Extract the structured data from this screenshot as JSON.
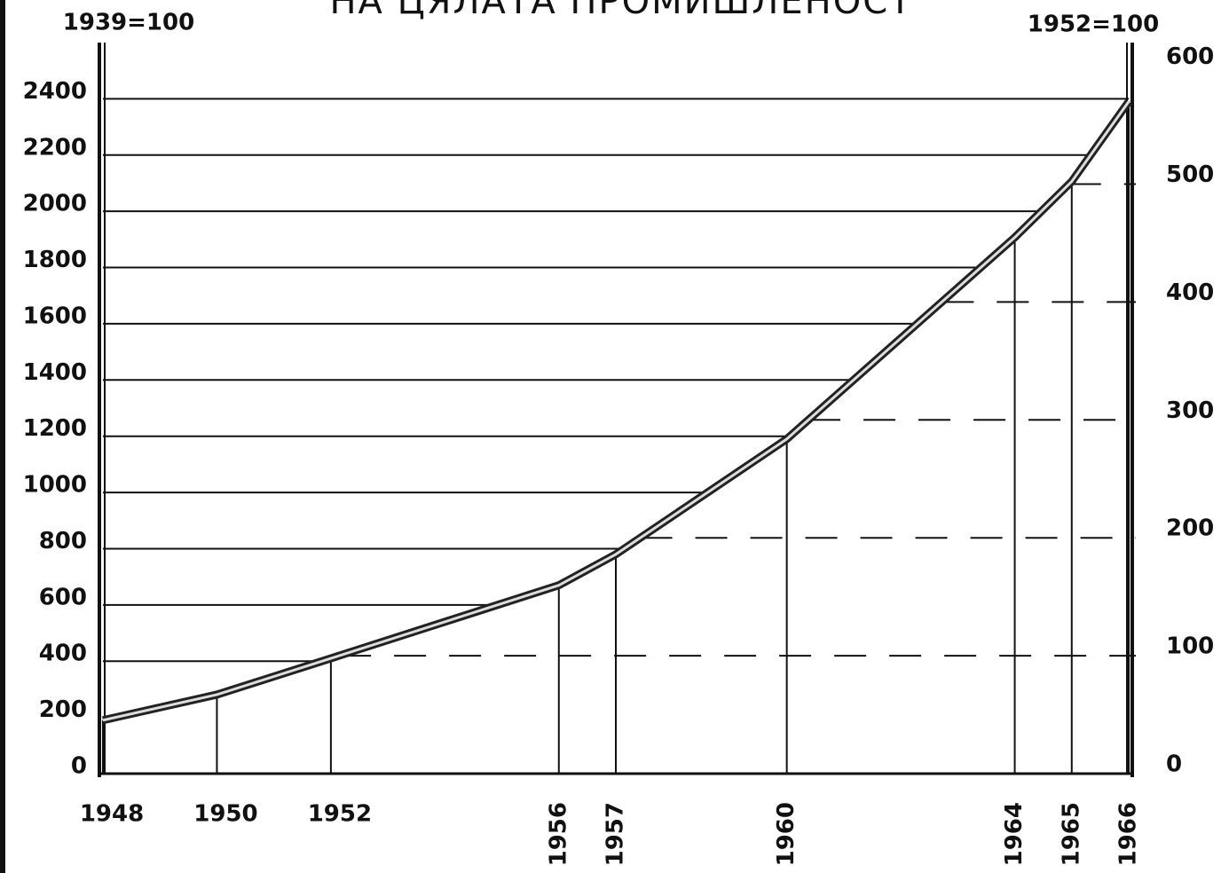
{
  "chart_data": {
    "type": "line",
    "title": "НА ЦЯЛАТА ПРОМИШЛЕНОСТ",
    "y_axis_label": "1939=100",
    "y2_axis_label": "1952=100",
    "x": [
      1948,
      1950,
      1952,
      1956,
      1957,
      1960,
      1964,
      1965,
      1966
    ],
    "series": [
      {
        "name": "1939=100",
        "color": "#222222",
        "values": [
          190,
          281,
          410,
          670,
          780,
          1190,
          1907,
          2106,
          2390
        ]
      }
    ],
    "xlim": [
      1948,
      1966
    ],
    "xticks": [
      1948,
      1950,
      1952,
      1956,
      1957,
      1960,
      1964,
      1965,
      1966
    ],
    "ylim": [
      0,
      2600
    ],
    "yticks": [
      0,
      200,
      400,
      600,
      800,
      1000,
      1200,
      1400,
      1600,
      1800,
      2000,
      2200,
      2400
    ],
    "y2lim": [
      0,
      620
    ],
    "y2ticks": [
      0,
      100,
      200,
      300,
      400,
      500,
      600
    ],
    "grid": true
  }
}
